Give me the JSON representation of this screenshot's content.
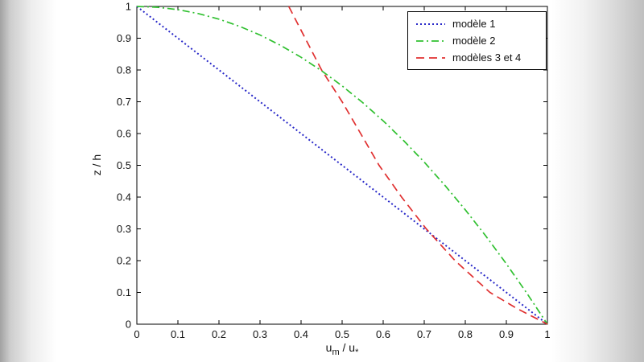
{
  "figure": {
    "ylabel": "z / h",
    "xlabel": {
      "u1": "u",
      "s1": "m",
      "sep": " / ",
      "u2": "u",
      "s2": "*"
    }
  },
  "chart_data": {
    "type": "line",
    "title": "",
    "xlabel": "u_m / u_*",
    "ylabel": "z / h",
    "xlim": [
      0,
      1
    ],
    "ylim": [
      0,
      1
    ],
    "xticks": [
      0,
      0.1,
      0.2,
      0.3,
      0.4,
      0.5,
      0.6,
      0.7,
      0.8,
      0.9,
      1
    ],
    "yticks": [
      0,
      0.1,
      0.2,
      0.3,
      0.4,
      0.5,
      0.6,
      0.7,
      0.8,
      0.9,
      1
    ],
    "grid": false,
    "legend_position": "top-right",
    "series": [
      {
        "name": "modèle 1",
        "color": "#2828c8",
        "linestyle": "dotted",
        "dash": "2 3",
        "width": 2,
        "points": [
          [
            0,
            1
          ],
          [
            1,
            0
          ]
        ]
      },
      {
        "name": "modèle 2",
        "color": "#30c030",
        "linestyle": "dash-dot",
        "dash": "9 4 2 4",
        "width": 1.7,
        "points": [
          [
            0,
            1
          ],
          [
            0.05,
            0.9975
          ],
          [
            0.1,
            0.99
          ],
          [
            0.15,
            0.9775
          ],
          [
            0.2,
            0.96
          ],
          [
            0.25,
            0.9375
          ],
          [
            0.3,
            0.91
          ],
          [
            0.35,
            0.8775
          ],
          [
            0.4,
            0.84
          ],
          [
            0.45,
            0.7975
          ],
          [
            0.5,
            0.75
          ],
          [
            0.55,
            0.6975
          ],
          [
            0.6,
            0.64
          ],
          [
            0.65,
            0.5775
          ],
          [
            0.7,
            0.51
          ],
          [
            0.75,
            0.4375
          ],
          [
            0.8,
            0.36
          ],
          [
            0.85,
            0.2775
          ],
          [
            0.9,
            0.19
          ],
          [
            0.95,
            0.0975
          ],
          [
            1,
            0
          ]
        ]
      },
      {
        "name": "modèles 3 et 4",
        "color": "#e03030",
        "linestyle": "dashed",
        "dash": "10 6",
        "width": 1.7,
        "points": [
          [
            0.37,
            1
          ],
          [
            0.41,
            0.9
          ],
          [
            0.45,
            0.8
          ],
          [
            0.5,
            0.7
          ],
          [
            0.545,
            0.6
          ],
          [
            0.59,
            0.5
          ],
          [
            0.645,
            0.4
          ],
          [
            0.705,
            0.3
          ],
          [
            0.775,
            0.2
          ],
          [
            0.86,
            0.1
          ],
          [
            0.925,
            0.05
          ],
          [
            1,
            0
          ]
        ]
      }
    ]
  }
}
